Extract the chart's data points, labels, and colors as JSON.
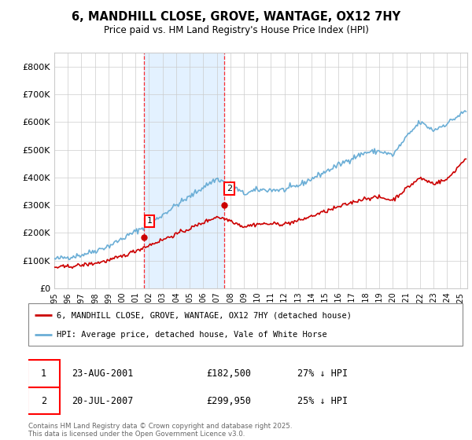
{
  "title": "6, MANDHILL CLOSE, GROVE, WANTAGE, OX12 7HY",
  "subtitle": "Price paid vs. HM Land Registry's House Price Index (HPI)",
  "ylim": [
    0,
    850000
  ],
  "yticks": [
    0,
    100000,
    200000,
    300000,
    400000,
    500000,
    600000,
    700000,
    800000
  ],
  "ytick_labels": [
    "£0",
    "£100K",
    "£200K",
    "£300K",
    "£400K",
    "£500K",
    "£600K",
    "£700K",
    "£800K"
  ],
  "hpi_color": "#6baed6",
  "price_color": "#cc0000",
  "transaction1": {
    "date": "23-AUG-2001",
    "price": 182500,
    "label": "1",
    "year": 2001.64
  },
  "transaction2": {
    "date": "20-JUL-2007",
    "price": 299950,
    "label": "2",
    "year": 2007.54
  },
  "legend1": "6, MANDHILL CLOSE, GROVE, WANTAGE, OX12 7HY (detached house)",
  "legend2": "HPI: Average price, detached house, Vale of White Horse",
  "footer": "Contains HM Land Registry data © Crown copyright and database right 2025.\nThis data is licensed under the Open Government Licence v3.0.",
  "background_color": "#ffffff",
  "shade_color": "#ddeeff",
  "hpi_waypoints_x": [
    1995,
    1996,
    1997,
    1998,
    1999,
    2000,
    2001,
    2002,
    2003,
    2004,
    2005,
    2006,
    2007,
    2008,
    2009,
    2010,
    2011,
    2012,
    2013,
    2014,
    2015,
    2016,
    2017,
    2018,
    2019,
    2020,
    2021,
    2022,
    2023,
    2024,
    2025.4
  ],
  "hpi_waypoints_y": [
    105000,
    112000,
    120000,
    135000,
    152000,
    178000,
    205000,
    230000,
    265000,
    300000,
    330000,
    365000,
    395000,
    375000,
    340000,
    355000,
    355000,
    355000,
    370000,
    395000,
    420000,
    445000,
    470000,
    490000,
    495000,
    480000,
    545000,
    600000,
    570000,
    595000,
    640000
  ],
  "price_waypoints_x": [
    1995,
    1996,
    1997,
    1998,
    1999,
    2000,
    2001,
    2002,
    2003,
    2004,
    2005,
    2006,
    2007,
    2008,
    2009,
    2010,
    2011,
    2012,
    2013,
    2014,
    2015,
    2016,
    2017,
    2018,
    2019,
    2020,
    2021,
    2022,
    2023,
    2024,
    2025.4
  ],
  "price_waypoints_y": [
    75000,
    78000,
    83000,
    90000,
    100000,
    115000,
    135000,
    155000,
    175000,
    195000,
    215000,
    237000,
    258000,
    245000,
    222000,
    232000,
    232000,
    232000,
    243000,
    260000,
    277000,
    293000,
    310000,
    325000,
    328000,
    318000,
    360000,
    398000,
    378000,
    392000,
    470000
  ]
}
